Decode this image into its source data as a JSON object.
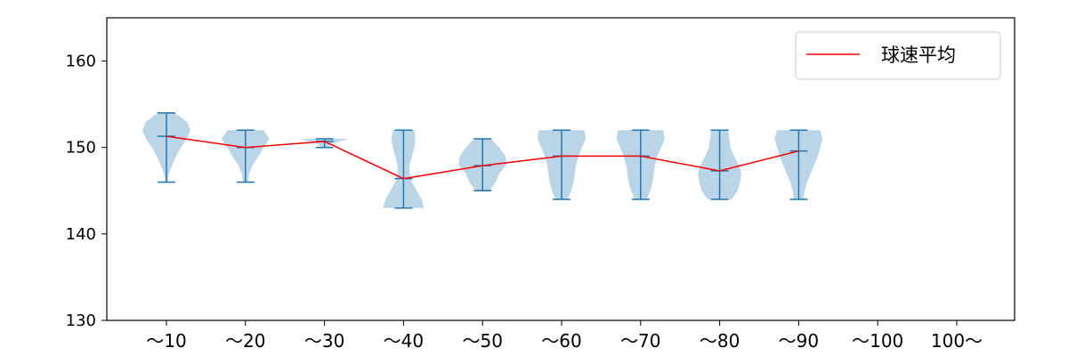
{
  "chart_data": {
    "type": "violin",
    "categories": [
      "～10",
      "～20",
      "～30",
      "～40",
      "～50",
      "～60",
      "～70",
      "～80",
      "～90",
      "～100",
      "100～"
    ],
    "ylim": [
      130,
      165
    ],
    "yticks": [
      130,
      140,
      150,
      160
    ],
    "legend": {
      "placement": "top-right",
      "entries": [
        {
          "label": "球速平均",
          "color": "#ff0000"
        }
      ]
    },
    "series": [
      {
        "name": "球速平均",
        "kind": "line",
        "color": "#ff0000",
        "values": [
          151.3,
          150.0,
          150.7,
          146.4,
          147.9,
          149.0,
          149.0,
          147.3,
          149.6,
          null,
          null
        ]
      }
    ],
    "violins": [
      {
        "category": "～10",
        "min": 146,
        "max": 154,
        "mean": 151.3
      },
      {
        "category": "～20",
        "min": 146,
        "max": 152,
        "mean": 150.0
      },
      {
        "category": "～30",
        "min": 150,
        "max": 151,
        "mean": 150.7
      },
      {
        "category": "～40",
        "min": 143,
        "max": 152,
        "mean": 146.4
      },
      {
        "category": "～50",
        "min": 145,
        "max": 151,
        "mean": 147.9
      },
      {
        "category": "～60",
        "min": 144,
        "max": 152,
        "mean": 149.0
      },
      {
        "category": "～70",
        "min": 144,
        "max": 152,
        "mean": 149.0
      },
      {
        "category": "～80",
        "min": 144,
        "max": 152,
        "mean": 147.3
      },
      {
        "category": "～90",
        "min": 144,
        "max": 152,
        "mean": 149.6
      },
      {
        "category": "～100",
        "min": null,
        "max": null,
        "mean": null
      },
      {
        "category": "100～",
        "min": null,
        "max": null,
        "mean": null
      }
    ],
    "violin_profiles": [
      [
        [
          146,
          0.05
        ],
        [
          147,
          0.1
        ],
        [
          148,
          0.25
        ],
        [
          149,
          0.4
        ],
        [
          150,
          0.6
        ],
        [
          151,
          0.85
        ],
        [
          152,
          1.0
        ],
        [
          153,
          0.85
        ],
        [
          154,
          0.35
        ]
      ],
      [
        [
          146,
          0.1
        ],
        [
          147,
          0.15
        ],
        [
          148,
          0.3
        ],
        [
          149,
          0.55
        ],
        [
          150,
          0.75
        ],
        [
          151,
          1.0
        ],
        [
          152,
          0.75
        ]
      ],
      [
        [
          150,
          0.1
        ],
        [
          150.5,
          0.35
        ],
        [
          151,
          1.0
        ]
      ],
      [
        [
          143,
          0.85
        ],
        [
          144,
          0.75
        ],
        [
          145,
          0.55
        ],
        [
          146,
          0.35
        ],
        [
          147,
          0.25
        ],
        [
          148,
          0.25
        ],
        [
          149,
          0.35
        ],
        [
          150,
          0.45
        ],
        [
          151,
          0.5
        ],
        [
          152,
          0.45
        ]
      ],
      [
        [
          145,
          0.3
        ],
        [
          146,
          0.55
        ],
        [
          147,
          0.7
        ],
        [
          148,
          1.0
        ],
        [
          149,
          0.95
        ],
        [
          150,
          0.7
        ],
        [
          151,
          0.35
        ]
      ],
      [
        [
          144,
          0.25
        ],
        [
          145,
          0.4
        ],
        [
          146,
          0.5
        ],
        [
          147,
          0.55
        ],
        [
          148,
          0.6
        ],
        [
          149,
          0.7
        ],
        [
          150,
          0.85
        ],
        [
          151,
          1.0
        ],
        [
          152,
          0.95
        ]
      ],
      [
        [
          144,
          0.25
        ],
        [
          145,
          0.4
        ],
        [
          146,
          0.5
        ],
        [
          147,
          0.55
        ],
        [
          148,
          0.6
        ],
        [
          149,
          0.7
        ],
        [
          150,
          0.85
        ],
        [
          151,
          1.0
        ],
        [
          152,
          0.95
        ]
      ],
      [
        [
          144,
          0.5
        ],
        [
          145,
          0.75
        ],
        [
          146,
          0.85
        ],
        [
          147,
          0.9
        ],
        [
          148,
          0.8
        ],
        [
          149,
          0.6
        ],
        [
          150,
          0.45
        ],
        [
          151,
          0.4
        ],
        [
          152,
          0.35
        ]
      ],
      [
        [
          144,
          0.2
        ],
        [
          145,
          0.25
        ],
        [
          146,
          0.35
        ],
        [
          147,
          0.5
        ],
        [
          148,
          0.65
        ],
        [
          149,
          0.8
        ],
        [
          150,
          0.9
        ],
        [
          151,
          1.0
        ],
        [
          152,
          0.9
        ]
      ],
      [],
      []
    ],
    "colors": {
      "violin_fill": "#a9c9e2",
      "violin_edge": "#1f77b4",
      "mean_line": "#ff0000",
      "axis": "#000000"
    },
    "grid": false,
    "title": "",
    "xlabel": "",
    "ylabel": ""
  }
}
